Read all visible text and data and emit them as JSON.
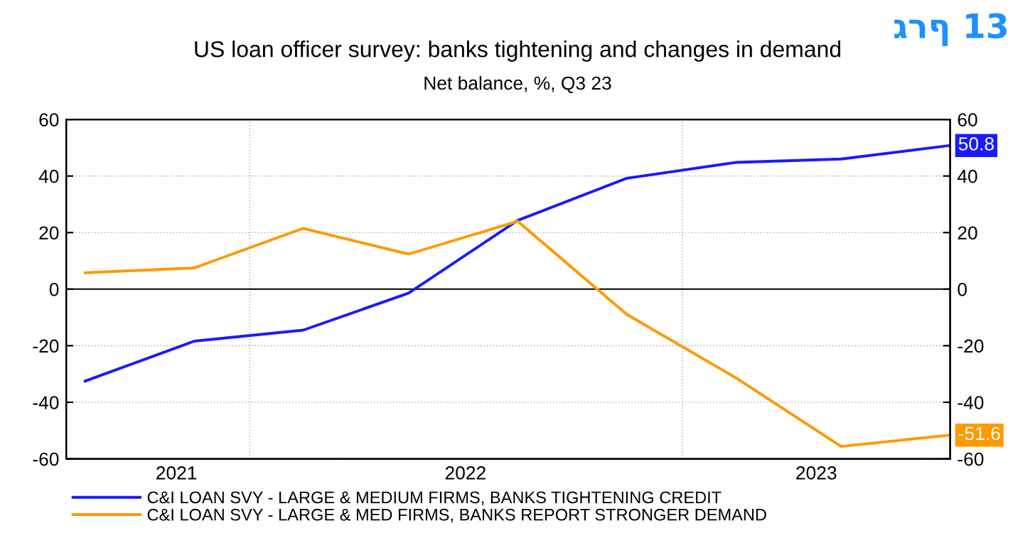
{
  "chart_data": {
    "type": "line",
    "title": "US loan officer survey: banks tightening and changes in demand",
    "subtitle": "Net balance, %, Q3 23",
    "annotations": [
      "גרף 13"
    ],
    "x": [
      "2021-08-15",
      "2021-11-15",
      "2022-02-15",
      "2022-05-15",
      "2022-08-15",
      "2022-11-15",
      "2023-02-15",
      "2023-05-15",
      "2023-08-15"
    ],
    "series": [
      {
        "name": "C&I LOAN SVY - LARGE & MEDIUM FIRMS, BANKS TIGHTENING CREDIT",
        "color": "#1a1aff",
        "values": [
          -32.5,
          -18.4,
          -14.5,
          -1.4,
          24.3,
          39.2,
          44.8,
          46.0,
          50.8
        ],
        "value_labels": [
          null,
          null,
          null,
          null,
          null,
          null,
          null,
          null,
          "50.8"
        ]
      },
      {
        "name": "C&I LOAN SVY - LARGE & MED FIRMS, BANKS REPORT STRONGER DEMAND",
        "color": "#ff9900",
        "values": [
          5.8,
          7.5,
          21.5,
          12.4,
          24.0,
          -8.9,
          -31.3,
          -55.6,
          -51.6
        ],
        "value_labels": [
          null,
          null,
          null,
          null,
          null,
          null,
          null,
          null,
          "-51.6"
        ]
      }
    ],
    "xlim": [
      "2021-07-30",
      "2023-08-15"
    ],
    "xticks": [
      {
        "value": "2021-10-31",
        "label": "2021"
      },
      {
        "value": "2022-01-01",
        "label": null
      },
      {
        "value": "2022-07-02",
        "label": "2022"
      },
      {
        "value": "2023-01-01",
        "label": null
      },
      {
        "value": "2023-04-24",
        "label": "2023"
      }
    ],
    "ylim": [
      -60,
      60
    ],
    "yticks": [
      -60,
      -40,
      -20,
      0,
      20,
      40,
      60
    ],
    "y2lim": [
      -60,
      60
    ],
    "y2ticks": [
      -60,
      -40,
      -20,
      0,
      20,
      40,
      60
    ],
    "ref_lines": [
      {
        "axis": "y",
        "value": 0,
        "color": "#000000",
        "line_style": "solid"
      }
    ],
    "grid": true,
    "legend": "bottom",
    "marker": "none",
    "line_style": "solid"
  }
}
